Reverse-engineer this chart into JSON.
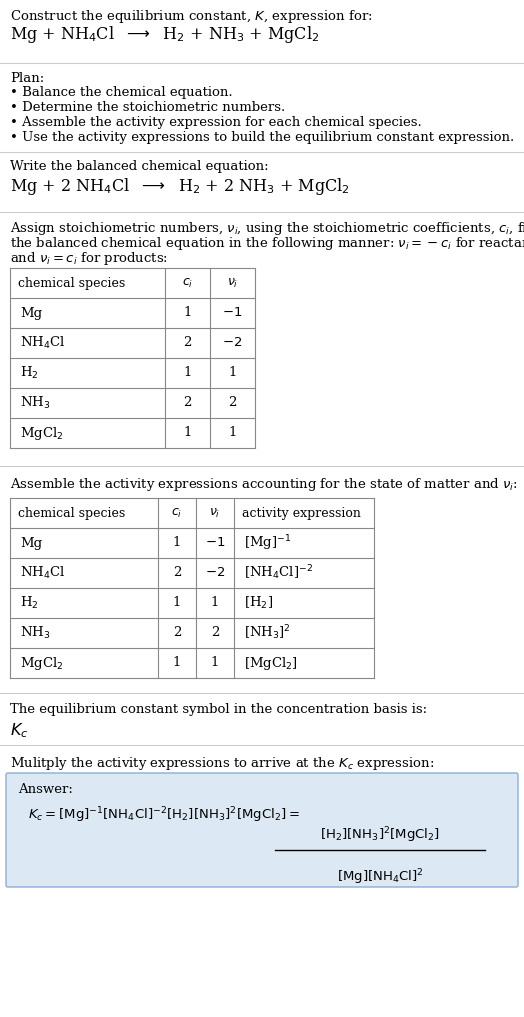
{
  "title_line1": "Construct the equilibrium constant, $K$, expression for:",
  "title_line2": "Mg + NH$_4$Cl  $\\longrightarrow$  H$_2$ + NH$_3$ + MgCl$_2$",
  "plan_header": "Plan:",
  "plan_items": [
    "• Balance the chemical equation.",
    "• Determine the stoichiometric numbers.",
    "• Assemble the activity expression for each chemical species.",
    "• Use the activity expressions to build the equilibrium constant expression."
  ],
  "balanced_header": "Write the balanced chemical equation:",
  "balanced_eq": "Mg + 2 NH$_4$Cl  $\\longrightarrow$  H$_2$ + 2 NH$_3$ + MgCl$_2$",
  "stoich_intro_parts": [
    "Assign stoichiometric numbers, $\\nu_i$, using the stoichiometric coefficients, $c_i$, from",
    "the balanced chemical equation in the following manner: $\\nu_i = -c_i$ for reactants",
    "and $\\nu_i = c_i$ for products:"
  ],
  "table1_headers": [
    "chemical species",
    "$c_i$",
    "$\\nu_i$"
  ],
  "table1_rows": [
    [
      "Mg",
      "1",
      "$-1$"
    ],
    [
      "NH$_4$Cl",
      "2",
      "$-2$"
    ],
    [
      "H$_2$",
      "1",
      "1"
    ],
    [
      "NH$_3$",
      "2",
      "2"
    ],
    [
      "MgCl$_2$",
      "1",
      "1"
    ]
  ],
  "activity_intro": "Assemble the activity expressions accounting for the state of matter and $\\nu_i$:",
  "table2_headers": [
    "chemical species",
    "$c_i$",
    "$\\nu_i$",
    "activity expression"
  ],
  "table2_rows": [
    [
      "Mg",
      "1",
      "$-1$",
      "[Mg]$^{-1}$"
    ],
    [
      "NH$_4$Cl",
      "2",
      "$-2$",
      "[NH$_4$Cl]$^{-2}$"
    ],
    [
      "H$_2$",
      "1",
      "1",
      "[H$_2$]"
    ],
    [
      "NH$_3$",
      "2",
      "2",
      "[NH$_3$]$^2$"
    ],
    [
      "MgCl$_2$",
      "1",
      "1",
      "[MgCl$_2$]"
    ]
  ],
  "kc_symbol_text": "The equilibrium constant symbol in the concentration basis is:",
  "kc_symbol": "$K_c$",
  "multiply_text": "Mulitply the activity expressions to arrive at the $K_c$ expression:",
  "answer_label": "Answer:",
  "bg_color": "#ffffff",
  "text_color": "#000000",
  "separator_color": "#cccccc",
  "answer_box_bg": "#dce9f5",
  "answer_box_border": "#8aafd4",
  "font_size": 9.5,
  "small_font_size": 9.0,
  "eq_font_size": 11.5
}
